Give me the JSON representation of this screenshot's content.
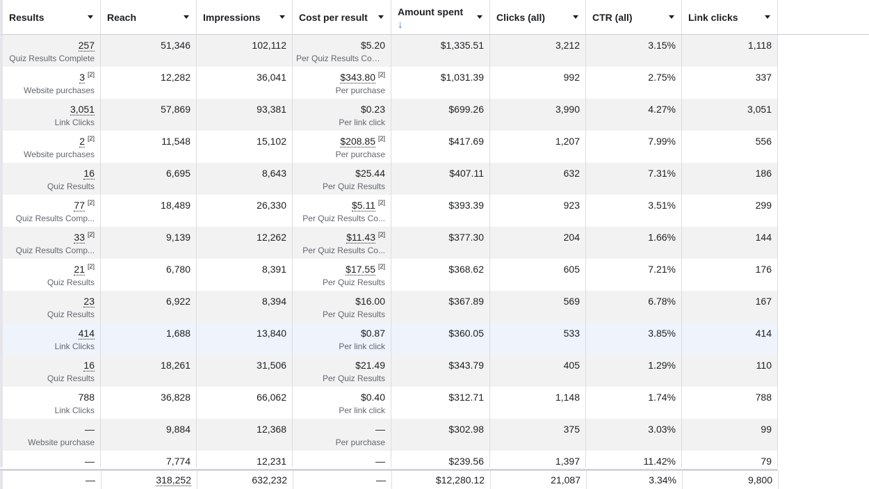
{
  "columns": [
    {
      "key": "results",
      "label": "Results"
    },
    {
      "key": "reach",
      "label": "Reach"
    },
    {
      "key": "impressions",
      "label": "Impressions"
    },
    {
      "key": "cost_per_result",
      "label": "Cost per result"
    },
    {
      "key": "amount_spent",
      "label": "Amount spent",
      "sort_indicator": "↓"
    },
    {
      "key": "clicks_all",
      "label": "Clicks (all)"
    },
    {
      "key": "ctr_all",
      "label": "CTR (all)"
    },
    {
      "key": "link_clicks",
      "label": "Link clicks"
    }
  ],
  "rows": [
    {
      "results": "257",
      "results_sub": "Quiz Results Complete",
      "reach": "51,346",
      "impressions": "102,112",
      "cost": "$5.20",
      "cost_sub": "Per Quiz Results Com...",
      "amount": "$1,335.51",
      "clicks": "3,212",
      "ctr": "3.15%",
      "link_clicks": "1,118"
    },
    {
      "results": "3",
      "results_ref": "[2]",
      "results_sub": "Website purchases",
      "reach": "12,282",
      "impressions": "36,041",
      "cost": "$343.80",
      "cost_ref": "[2]",
      "cost_sub": "Per purchase",
      "amount": "$1,031.39",
      "clicks": "992",
      "ctr": "2.75%",
      "link_clicks": "337"
    },
    {
      "results": "3,051",
      "results_sub": "Link Clicks",
      "reach": "57,869",
      "impressions": "93,381",
      "cost": "$0.23",
      "cost_sub": "Per link click",
      "amount": "$699.26",
      "clicks": "3,990",
      "ctr": "4.27%",
      "link_clicks": "3,051"
    },
    {
      "results": "2",
      "results_ref": "[2]",
      "results_sub": "Website purchases",
      "reach": "11,548",
      "impressions": "15,102",
      "cost": "$208.85",
      "cost_ref": "[2]",
      "cost_sub": "Per purchase",
      "amount": "$417.69",
      "clicks": "1,207",
      "ctr": "7.99%",
      "link_clicks": "556"
    },
    {
      "results": "16",
      "results_sub": "Quiz Results",
      "reach": "6,695",
      "impressions": "8,643",
      "cost": "$25.44",
      "cost_sub": "Per Quiz Results",
      "amount": "$407.11",
      "clicks": "632",
      "ctr": "7.31%",
      "link_clicks": "186"
    },
    {
      "results": "77",
      "results_ref": "[2]",
      "results_sub": "Quiz Results Comp...",
      "reach": "18,489",
      "impressions": "26,330",
      "cost": "$5.11",
      "cost_ref": "[2]",
      "cost_sub": "Per Quiz Results Co...",
      "amount": "$393.39",
      "clicks": "923",
      "ctr": "3.51%",
      "link_clicks": "299"
    },
    {
      "results": "33",
      "results_ref": "[2]",
      "results_sub": "Quiz Results Comp...",
      "reach": "9,139",
      "impressions": "12,262",
      "cost": "$11.43",
      "cost_ref": "[2]",
      "cost_sub": "Per Quiz Results Co...",
      "amount": "$377.30",
      "clicks": "204",
      "ctr": "1.66%",
      "link_clicks": "144"
    },
    {
      "results": "21",
      "results_ref": "[2]",
      "results_sub": "Quiz Results",
      "reach": "6,780",
      "impressions": "8,391",
      "cost": "$17.55",
      "cost_ref": "[2]",
      "cost_sub": "Per Quiz Results",
      "amount": "$368.62",
      "clicks": "605",
      "ctr": "7.21%",
      "link_clicks": "176"
    },
    {
      "results": "23",
      "results_sub": "Quiz Results",
      "reach": "6,922",
      "impressions": "8,394",
      "cost": "$16.00",
      "cost_sub": "Per Quiz Results",
      "amount": "$367.89",
      "clicks": "569",
      "ctr": "6.78%",
      "link_clicks": "167"
    },
    {
      "results": "414",
      "results_sub": "Link Clicks",
      "reach": "1,688",
      "impressions": "13,840",
      "cost": "$0.87",
      "cost_sub": "Per link click",
      "amount": "$360.05",
      "clicks": "533",
      "ctr": "3.85%",
      "link_clicks": "414",
      "highlight": true
    },
    {
      "results": "16",
      "results_sub": "Quiz Results",
      "reach": "18,261",
      "impressions": "31,506",
      "cost": "$21.49",
      "cost_sub": "Per Quiz Results",
      "amount": "$343.79",
      "clicks": "405",
      "ctr": "1.29%",
      "link_clicks": "110"
    },
    {
      "results": "788",
      "results_plain": true,
      "results_sub": "Link Clicks",
      "reach": "36,828",
      "impressions": "66,062",
      "cost": "$0.40",
      "cost_sub": "Per link click",
      "amount": "$312.71",
      "clicks": "1,148",
      "ctr": "1.74%",
      "link_clicks": "788"
    },
    {
      "results": "—",
      "results_plain": true,
      "results_sub": "Website purchase",
      "reach": "9,884",
      "impressions": "12,368",
      "cost": "—",
      "cost_plain": true,
      "cost_sub": "Per purchase",
      "amount": "$302.98",
      "clicks": "375",
      "ctr": "3.03%",
      "link_clicks": "99"
    },
    {
      "results": "—",
      "results_plain": true,
      "results_sub": "",
      "reach": "7,774",
      "impressions": "12,231",
      "cost": "—",
      "cost_plain": true,
      "cost_sub": "",
      "amount": "$239.56",
      "clicks": "1,397",
      "ctr": "11.42%",
      "link_clicks": "79"
    }
  ],
  "totals": {
    "results": "—",
    "reach": "318,252",
    "impressions": "632,232",
    "cost": "—",
    "amount": "$12,280.12",
    "clicks": "21,087",
    "ctr": "3.34%",
    "link_clicks": "9,800"
  }
}
